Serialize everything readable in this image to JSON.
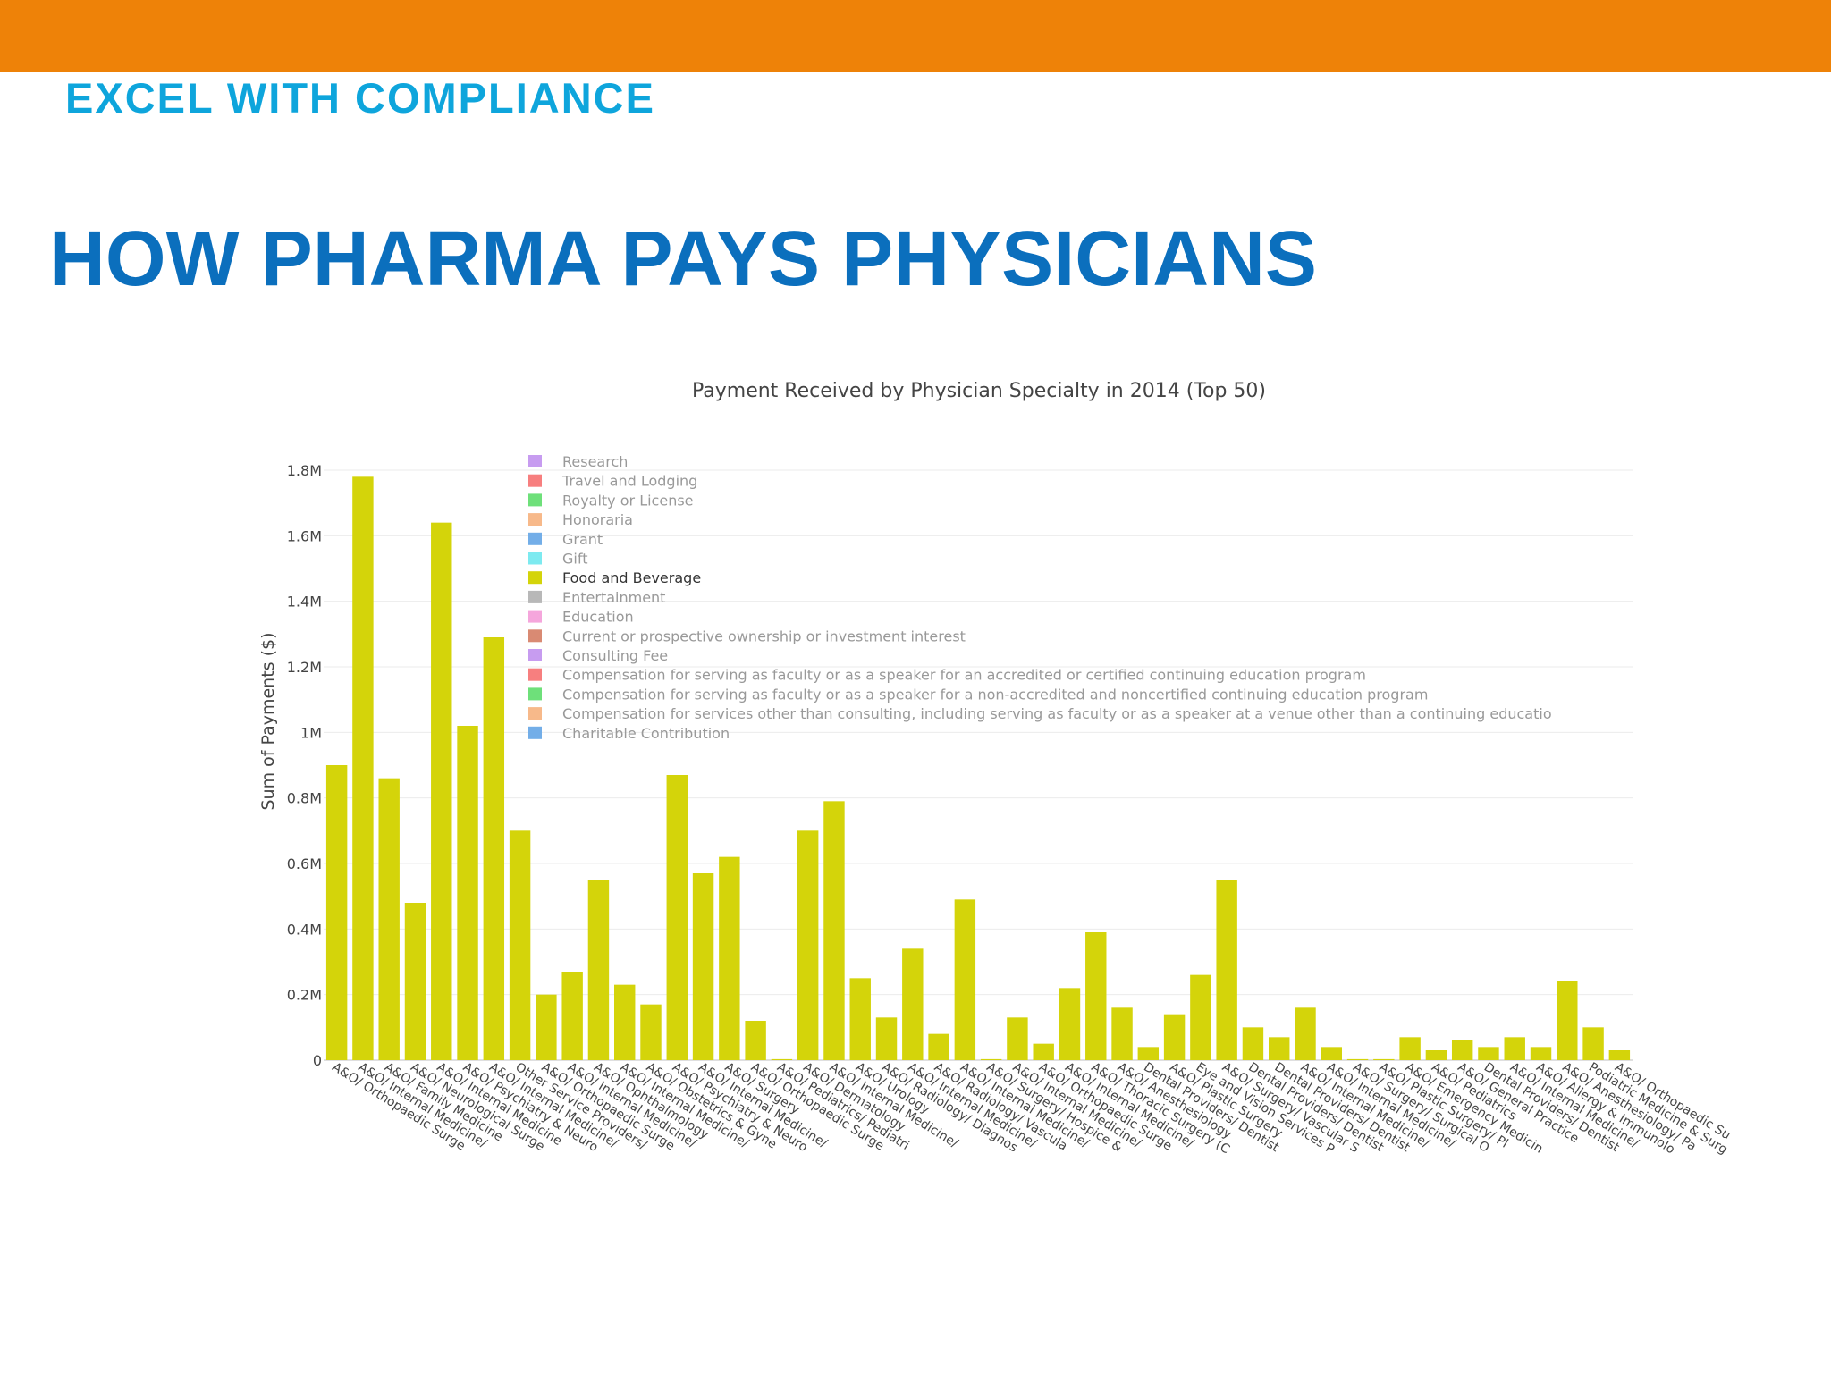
{
  "slide": {
    "subtitle": "EXCEL WITH COMPLIANCE",
    "title": "HOW PHARMA PAYS PHYSICIANS",
    "topbar_color": "#ee8208",
    "subtitle_color": "#0ea5dc",
    "title_color": "#0b6fbd"
  },
  "chart_data": {
    "type": "bar",
    "title": "Payment Received by Physician Specialty in 2014 (Top 50)",
    "xlabel": "",
    "ylabel": "Sum of Payments ($)",
    "ylim": [
      0,
      1.8
    ],
    "yticks": [
      {
        "value": 0,
        "label": "0"
      },
      {
        "value": 0.2,
        "label": "0.2M"
      },
      {
        "value": 0.4,
        "label": "0.4M"
      },
      {
        "value": 0.6,
        "label": "0.6M"
      },
      {
        "value": 0.8,
        "label": "0.8M"
      },
      {
        "value": 1.0,
        "label": "1M"
      },
      {
        "value": 1.2,
        "label": "1.2M"
      },
      {
        "value": 1.4,
        "label": "1.4M"
      },
      {
        "value": 1.6,
        "label": "1.6M"
      },
      {
        "value": 1.8,
        "label": "1.8M"
      }
    ],
    "grid": true,
    "legend_position": "top-center",
    "bar_color": "#d4d40a",
    "categories": [
      "A&O/ Orthopaedic Surge",
      "A&O/ Internal Medicine/",
      "A&O/ Family Medicine",
      "A&O/ Neurological Surge",
      "A&O/ Internal Medicine",
      "A&O/ Psychiatry & Neuro",
      "A&O/ Internal Medicine/",
      "Other Service Providers/",
      "A&O/ Orthopaedic Surge",
      "A&O/ Internal Medicine/",
      "A&O/ Ophthalmology",
      "A&O/ Internal Medicine/",
      "A&O/ Obstetrics & Gyne",
      "A&O/ Psychiatry & Neuro",
      "A&O/ Internal Medicine/",
      "A&O/ Surgery",
      "A&O/ Orthopaedic Surge",
      "A&O/ Pediatrics/ Pediatri",
      "A&O/ Dermatology",
      "A&O/ Internal Medicine/",
      "A&O/ Urology",
      "A&O/ Radiology/ Diagnos",
      "A&O/ Internal Medicine/",
      "A&O/ Radiology/ Vascula",
      "A&O/ Internal Medicine/",
      "A&O/ Surgery/ Hospice &",
      "A&O/ Internal Medicine/",
      "A&O/ Orthopaedic Surge",
      "A&O/ Internal Medicine/",
      "A&O/ Thoracic Surgery (C",
      "A&O/ Anesthesiology",
      "Dental Providers/ Dentist",
      "A&O/ Plastic Surgery",
      "Eye and Vision Services P",
      "A&O/ Surgery/ Vascular S",
      "Dental Providers/ Dentist",
      "Dental Providers/ Dentist",
      "A&O/ Internal Medicine/",
      "A&O/ Internal Medicine/",
      "A&O/ Surgery/ Surgical O",
      "A&O/ Plastic Surgery/ Pl",
      "A&O/ Emergency Medicin",
      "A&O/ Pediatrics",
      "A&O/ General Practice",
      "Dental Providers/ Dentist",
      "A&O/ Internal Medicine/",
      "A&O/ Allergy & Immunolo",
      "A&O/ Anesthesiology/ Pa",
      "Podiatric Medicine & Surg",
      "A&O/ Orthopaedic Su"
    ],
    "values": [
      0.9,
      1.78,
      0.86,
      0.48,
      1.64,
      1.02,
      1.29,
      0.7,
      0.2,
      0.27,
      0.55,
      0.23,
      0.17,
      0.87,
      0.57,
      0.62,
      0.12,
      0.003,
      0.7,
      0.79,
      0.25,
      0.13,
      0.34,
      0.08,
      0.49,
      0.003,
      0.13,
      0.05,
      0.22,
      0.39,
      0.16,
      0.04,
      0.14,
      0.26,
      0.55,
      0.1,
      0.07,
      0.16,
      0.04,
      0.003,
      0.003,
      0.07,
      0.03,
      0.06,
      0.04,
      0.07,
      0.04,
      0.24,
      0.1,
      0.03
    ],
    "legend": [
      {
        "name": "Research",
        "color": "#c79cf0"
      },
      {
        "name": "Travel and Lodging",
        "color": "#f77f7f"
      },
      {
        "name": "Royalty or License",
        "color": "#6ee07a"
      },
      {
        "name": "Honoraria",
        "color": "#f7b98a"
      },
      {
        "name": "Grant",
        "color": "#73aee8"
      },
      {
        "name": "Gift",
        "color": "#7deaf0"
      },
      {
        "name": "Food and Beverage",
        "color": "#d4d40a",
        "active": true
      },
      {
        "name": "Entertainment",
        "color": "#b8b8b8"
      },
      {
        "name": "Education",
        "color": "#f5a6dc"
      },
      {
        "name": "Current or prospective ownership or investment interest",
        "color": "#d98a73"
      },
      {
        "name": "Consulting Fee",
        "color": "#c79cf0"
      },
      {
        "name": "Compensation for serving as faculty or as a speaker for an accredited or certified continuing education program",
        "color": "#f77f7f"
      },
      {
        "name": "Compensation for serving as faculty or as a speaker for a non-accredited and noncertified continuing education program",
        "color": "#6ee07a"
      },
      {
        "name": "Compensation for services other than consulting, including serving as faculty or as a speaker at a venue other than a continuing educatio",
        "color": "#f7b98a"
      },
      {
        "name": "Charitable Contribution",
        "color": "#73aee8"
      }
    ]
  }
}
